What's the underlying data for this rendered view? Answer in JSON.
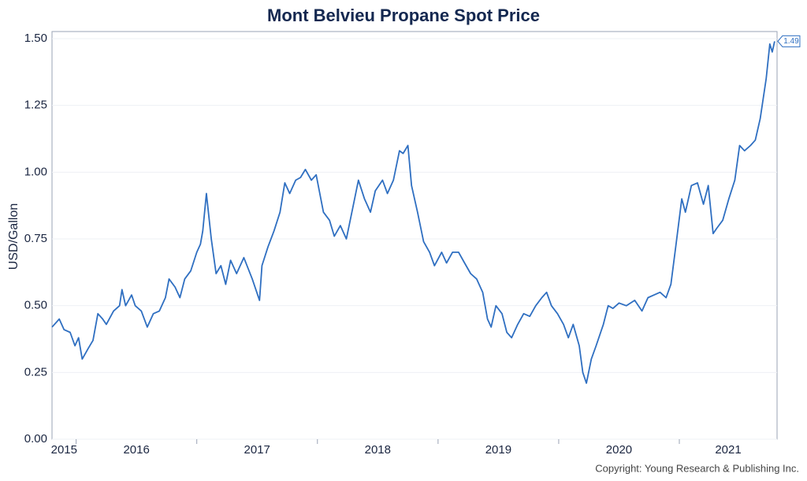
{
  "chart_data": {
    "type": "line",
    "title": "Mont Belvieu Propane Spot Price",
    "y_label": "USD/Gallon",
    "copyright": "Copyright: Young Research & Publishing Inc.",
    "annotation": "1.49",
    "grid": true,
    "xlim": [
      2015.8,
      2021.81
    ],
    "xticks": [
      {
        "value": 2015,
        "label": "2015"
      },
      {
        "value": 2016,
        "label": "2016"
      },
      {
        "value": 2017,
        "label": "2017"
      },
      {
        "value": 2018,
        "label": "2018"
      },
      {
        "value": 2019,
        "label": "2019"
      },
      {
        "value": 2020,
        "label": "2020"
      },
      {
        "value": 2021,
        "label": "2021"
      }
    ],
    "ylim": [
      0,
      1.5
    ],
    "yticks": [
      {
        "value": 0,
        "label": "0.00"
      },
      {
        "value": 0.25,
        "label": "0.25"
      },
      {
        "value": 0.5,
        "label": "0.50"
      },
      {
        "value": 0.75,
        "label": "0.75"
      },
      {
        "value": 1,
        "label": "1.00"
      },
      {
        "value": 1.25,
        "label": "1.25"
      },
      {
        "value": 1.5,
        "label": "1.50"
      }
    ],
    "series": [
      {
        "name": "Propane",
        "color": "#2f6fc1",
        "x": [
          2015.8,
          2015.86,
          2015.9,
          2015.95,
          2015.99,
          2016.02,
          2016.05,
          2016.1,
          2016.14,
          2016.18,
          2016.22,
          2016.25,
          2016.31,
          2016.36,
          2016.38,
          2016.41,
          2016.46,
          2016.49,
          2016.54,
          2016.59,
          2016.64,
          2016.69,
          2016.74,
          2016.77,
          2016.82,
          2016.86,
          2016.9,
          2016.95,
          2017.0,
          2017.03,
          2017.05,
          2017.08,
          2017.12,
          2017.16,
          2017.2,
          2017.24,
          2017.28,
          2017.33,
          2017.39,
          2017.46,
          2017.52,
          2017.54,
          2017.59,
          2017.64,
          2017.69,
          2017.73,
          2017.77,
          2017.82,
          2017.86,
          2017.9,
          2017.95,
          2017.99,
          2018.05,
          2018.1,
          2018.14,
          2018.19,
          2018.24,
          2018.29,
          2018.34,
          2018.39,
          2018.44,
          2018.48,
          2018.54,
          2018.58,
          2018.63,
          2018.68,
          2018.71,
          2018.75,
          2018.78,
          2018.83,
          2018.88,
          2018.93,
          2018.97,
          2019.03,
          2019.07,
          2019.12,
          2019.17,
          2019.22,
          2019.27,
          2019.32,
          2019.37,
          2019.41,
          2019.44,
          2019.48,
          2019.53,
          2019.57,
          2019.61,
          2019.66,
          2019.71,
          2019.76,
          2019.81,
          2019.86,
          2019.9,
          2019.94,
          2019.99,
          2020.04,
          2020.08,
          2020.12,
          2020.17,
          2020.2,
          2020.23,
          2020.27,
          2020.31,
          2020.37,
          2020.41,
          2020.45,
          2020.5,
          2020.56,
          2020.63,
          2020.69,
          2020.74,
          2020.79,
          2020.84,
          2020.89,
          2020.93,
          2020.97,
          2021.02,
          2021.05,
          2021.1,
          2021.15,
          2021.2,
          2021.24,
          2021.28,
          2021.31,
          2021.36,
          2021.41,
          2021.46,
          2021.5,
          2021.54,
          2021.59,
          2021.63,
          2021.67,
          2021.72,
          2021.75,
          2021.77,
          2021.79
        ],
        "values": [
          0.42,
          0.45,
          0.41,
          0.4,
          0.35,
          0.38,
          0.3,
          0.34,
          0.37,
          0.47,
          0.45,
          0.43,
          0.48,
          0.5,
          0.56,
          0.5,
          0.54,
          0.5,
          0.48,
          0.42,
          0.47,
          0.48,
          0.53,
          0.6,
          0.57,
          0.53,
          0.6,
          0.63,
          0.7,
          0.73,
          0.78,
          0.92,
          0.75,
          0.62,
          0.65,
          0.58,
          0.67,
          0.62,
          0.68,
          0.6,
          0.52,
          0.65,
          0.72,
          0.78,
          0.85,
          0.96,
          0.92,
          0.97,
          0.98,
          1.01,
          0.97,
          0.99,
          0.85,
          0.82,
          0.76,
          0.8,
          0.75,
          0.86,
          0.97,
          0.9,
          0.85,
          0.93,
          0.97,
          0.92,
          0.97,
          1.08,
          1.07,
          1.1,
          0.95,
          0.85,
          0.74,
          0.7,
          0.65,
          0.7,
          0.66,
          0.7,
          0.7,
          0.66,
          0.62,
          0.6,
          0.55,
          0.45,
          0.42,
          0.5,
          0.47,
          0.4,
          0.38,
          0.43,
          0.47,
          0.46,
          0.5,
          0.53,
          0.55,
          0.5,
          0.47,
          0.43,
          0.38,
          0.43,
          0.35,
          0.25,
          0.21,
          0.3,
          0.35,
          0.43,
          0.5,
          0.49,
          0.51,
          0.5,
          0.52,
          0.48,
          0.53,
          0.54,
          0.55,
          0.53,
          0.58,
          0.72,
          0.9,
          0.85,
          0.95,
          0.96,
          0.88,
          0.95,
          0.77,
          0.79,
          0.82,
          0.9,
          0.97,
          1.1,
          1.08,
          1.1,
          1.12,
          1.2,
          1.35,
          1.48,
          1.45,
          1.49
        ]
      }
    ]
  }
}
